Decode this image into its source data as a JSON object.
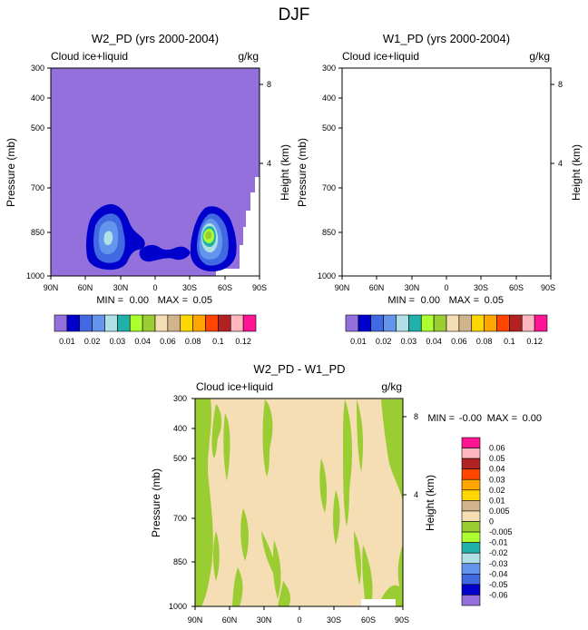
{
  "figure_title": "DJF",
  "chart_data": [
    {
      "type": "contour",
      "title": "W2_PD (yrs 2000-2004)",
      "left_label": "Cloud ice+liquid",
      "right_label": "g/kg",
      "ylabel": "Pressure (mb)",
      "y2label": "Height (km)",
      "xticks": [
        "90N",
        "60N",
        "30N",
        "0",
        "30S",
        "60S",
        "90S"
      ],
      "yticks": [
        300,
        400,
        500,
        700,
        850,
        1000
      ],
      "height_ticks": [
        8,
        4
      ],
      "min_label": "MIN =",
      "min_value": "0.00",
      "max_label": "MAX =",
      "max_value": "0.05",
      "legend_labels": [
        "0.01",
        "0.02",
        "0.03",
        "0.04",
        "0.06",
        "0.08",
        "0.1",
        "0.12"
      ]
    },
    {
      "type": "contour",
      "title": "W1_PD (yrs 2000-2004)",
      "left_label": "Cloud ice+liquid",
      "right_label": "g/kg",
      "ylabel": "Pressure (mb)",
      "y2label": "Height (km)",
      "xticks": [
        "90N",
        "60N",
        "30N",
        "0",
        "30S",
        "60S",
        "90S"
      ],
      "yticks": [
        300,
        400,
        500,
        700,
        850,
        1000
      ],
      "height_ticks": [
        8,
        4
      ],
      "min_label": "MIN =",
      "min_value": "0.00",
      "max_label": "MAX =",
      "max_value": "0.05",
      "legend_labels": [
        "0.01",
        "0.02",
        "0.03",
        "0.04",
        "0.06",
        "0.08",
        "0.1",
        "0.12"
      ]
    },
    {
      "type": "contour",
      "title": "W2_PD - W1_PD",
      "left_label": "Cloud ice+liquid",
      "right_label": "g/kg",
      "ylabel": "Pressure (mb)",
      "y2label": "Height (km)",
      "xticks": [
        "90N",
        "60N",
        "30N",
        "0",
        "30S",
        "60S",
        "90S"
      ],
      "yticks": [
        300,
        400,
        500,
        700,
        850,
        1000
      ],
      "height_ticks": [
        8,
        4
      ],
      "min_label": "MIN =",
      "min_value": "-0.00",
      "max_label": "MAX =",
      "max_value": "0.00",
      "legend_labels": [
        "0.06",
        "0.05",
        "0.04",
        "0.03",
        "0.02",
        "0.01",
        "0.005",
        "0",
        "-0.005",
        "-0.01",
        "-0.02",
        "-0.03",
        "-0.04",
        "-0.05",
        "-0.06"
      ]
    }
  ],
  "colors": {
    "palette_top": [
      "#9370DB",
      "#0000CD",
      "#4169E1",
      "#6495ED",
      "#B0E0E6",
      "#20B2AA",
      "#ADFF2F",
      "#9ACD32",
      "#F5DEB3",
      "#D2B48C",
      "#FFD700",
      "#FFA500",
      "#FF4500",
      "#B22222",
      "#FFB6C1",
      "#FF1493"
    ],
    "palette_diff": [
      "#FF1493",
      "#FFB6C1",
      "#B22222",
      "#FF4500",
      "#FFA500",
      "#FFD700",
      "#D2B48C",
      "#F5DEB3",
      "#9ACD32",
      "#ADFF2F",
      "#20B2AA",
      "#B0E0E6",
      "#6495ED",
      "#4169E1",
      "#0000CD",
      "#9370DB"
    ]
  }
}
